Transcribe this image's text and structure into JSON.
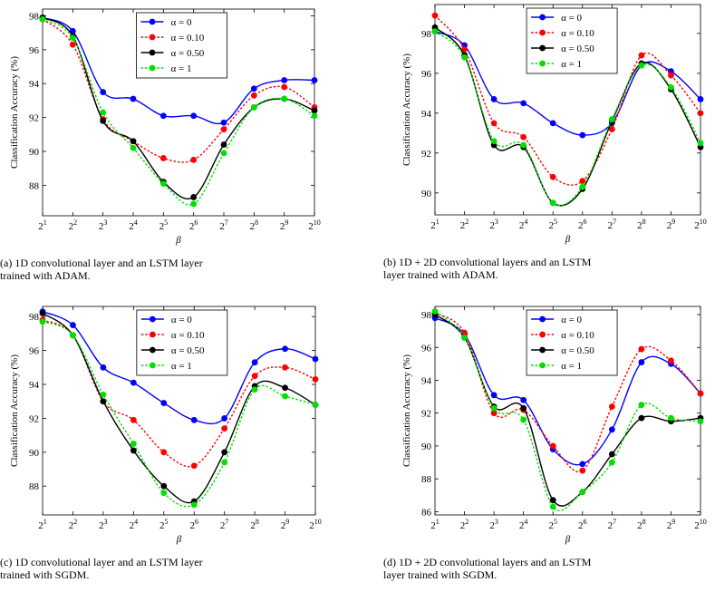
{
  "chart_data": [
    {
      "type": "line",
      "caption": [
        "(a) 1D convolutional layer and an LSTM layer",
        "trained with ADAM."
      ],
      "xlabel": "β",
      "ylabel": "Classification Accuracy (%)",
      "xscale": "log",
      "x": [
        2,
        4,
        8,
        16,
        32,
        64,
        128,
        256,
        512,
        1024
      ],
      "xlim": [
        2,
        1024
      ],
      "xticks": [
        {
          "value": 2,
          "label": "2^1"
        },
        {
          "value": 4,
          "label": "2^2"
        },
        {
          "value": 8,
          "label": "2^3"
        },
        {
          "value": 16,
          "label": "2^4"
        },
        {
          "value": 32,
          "label": "2^5"
        },
        {
          "value": 64,
          "label": "2^6"
        },
        {
          "value": 128,
          "label": "2^7"
        },
        {
          "value": 256,
          "label": "2^8"
        },
        {
          "value": 512,
          "label": "2^9"
        },
        {
          "value": 1024,
          "label": "2^10"
        }
      ],
      "ylim": [
        86.2,
        98.4
      ],
      "yticks": [
        88,
        90,
        92,
        94,
        96,
        98
      ],
      "series": [
        {
          "name": "α = 0",
          "color": "#0000ff",
          "style": "solid",
          "values": [
            97.9,
            97.1,
            93.5,
            93.1,
            92.1,
            92.1,
            91.7,
            93.7,
            94.2,
            94.2
          ]
        },
        {
          "name": "α = 0.10",
          "color": "#ff0000",
          "style": "dotted",
          "values": [
            97.8,
            96.3,
            91.9,
            90.6,
            89.6,
            89.5,
            91.3,
            93.3,
            93.8,
            92.6
          ]
        },
        {
          "name": "α = 0.50",
          "color": "#000000",
          "style": "solid",
          "values": [
            97.9,
            96.8,
            91.8,
            90.6,
            88.2,
            87.3,
            90.4,
            92.6,
            93.1,
            92.4
          ]
        },
        {
          "name": "α = 1",
          "color": "#00e000",
          "style": "dotted",
          "values": [
            97.8,
            96.7,
            92.3,
            90.2,
            88.1,
            86.9,
            89.9,
            92.6,
            93.1,
            92.1
          ]
        }
      ]
    },
    {
      "type": "line",
      "caption": [
        "(b) 1D + 2D convolutional layers and an LSTM",
        "layer trained with ADAM."
      ],
      "xlabel": "β",
      "ylabel": "Classification Accuracy (%)",
      "xscale": "log",
      "x": [
        2,
        4,
        8,
        16,
        32,
        64,
        128,
        256,
        512,
        1024
      ],
      "xlim": [
        2,
        1024
      ],
      "xticks": [
        {
          "value": 2,
          "label": "2^1"
        },
        {
          "value": 4,
          "label": "2^2"
        },
        {
          "value": 8,
          "label": "2^3"
        },
        {
          "value": 16,
          "label": "2^4"
        },
        {
          "value": 32,
          "label": "2^5"
        },
        {
          "value": 64,
          "label": "2^6"
        },
        {
          "value": 128,
          "label": "2^7"
        },
        {
          "value": 256,
          "label": "2^8"
        },
        {
          "value": 512,
          "label": "2^9"
        },
        {
          "value": 1024,
          "label": "2^10"
        }
      ],
      "ylim": [
        88.9,
        99.45
      ],
      "yticks": [
        90,
        92,
        94,
        96,
        98
      ],
      "series": [
        {
          "name": "α = 0",
          "color": "#0000ff",
          "style": "solid",
          "values": [
            98.1,
            97.4,
            94.7,
            94.5,
            93.5,
            92.9,
            93.5,
            96.4,
            96.1,
            94.7
          ]
        },
        {
          "name": "α = 0.10",
          "color": "#ff0000",
          "style": "dotted",
          "values": [
            98.9,
            97.2,
            93.5,
            92.8,
            90.8,
            90.6,
            93.2,
            96.9,
            95.9,
            94.0
          ]
        },
        {
          "name": "α = 0.50",
          "color": "#000000",
          "style": "solid",
          "values": [
            98.3,
            96.9,
            92.4,
            92.3,
            89.5,
            90.2,
            93.6,
            96.5,
            95.2,
            92.3
          ]
        },
        {
          "name": "α = 1",
          "color": "#00e000",
          "style": "dotted",
          "values": [
            98.1,
            96.8,
            92.6,
            92.4,
            89.5,
            90.3,
            93.7,
            96.4,
            95.3,
            92.5
          ]
        }
      ]
    },
    {
      "type": "line",
      "caption": [
        "(c) 1D convolutional layer and an LSTM layer",
        "trained with SGDM."
      ],
      "xlabel": "β",
      "ylabel": "Classification Accuracy (%)",
      "xscale": "log",
      "x": [
        2,
        4,
        8,
        16,
        32,
        64,
        128,
        256,
        512,
        1024
      ],
      "xlim": [
        2,
        1024
      ],
      "xticks": [
        {
          "value": 2,
          "label": "2^1"
        },
        {
          "value": 4,
          "label": "2^2"
        },
        {
          "value": 8,
          "label": "2^3"
        },
        {
          "value": 16,
          "label": "2^4"
        },
        {
          "value": 32,
          "label": "2^5"
        },
        {
          "value": 64,
          "label": "2^6"
        },
        {
          "value": 128,
          "label": "2^7"
        },
        {
          "value": 256,
          "label": "2^8"
        },
        {
          "value": 512,
          "label": "2^9"
        },
        {
          "value": 1024,
          "label": "2^10"
        }
      ],
      "ylim": [
        86.3,
        98.6
      ],
      "yticks": [
        88,
        90,
        92,
        94,
        96,
        98
      ],
      "series": [
        {
          "name": "α = 0",
          "color": "#0000ff",
          "style": "solid",
          "values": [
            98.3,
            97.5,
            95.0,
            94.1,
            92.9,
            91.9,
            92.0,
            95.3,
            96.1,
            95.5
          ]
        },
        {
          "name": "α = 0.10",
          "color": "#ff0000",
          "style": "dotted",
          "values": [
            97.8,
            96.9,
            93.0,
            91.9,
            90.0,
            89.2,
            91.4,
            94.5,
            95.0,
            94.3
          ]
        },
        {
          "name": "α = 0.50",
          "color": "#000000",
          "style": "solid",
          "values": [
            98.2,
            96.9,
            93.0,
            90.1,
            88.0,
            87.1,
            90.0,
            93.9,
            93.8,
            92.8
          ]
        },
        {
          "name": "α = 1",
          "color": "#00e000",
          "style": "dotted",
          "values": [
            97.7,
            96.9,
            93.4,
            90.5,
            87.6,
            86.9,
            89.4,
            93.7,
            93.3,
            92.8
          ]
        }
      ]
    },
    {
      "type": "line",
      "caption": [
        "(d) 1D + 2D convolutional layers and an LSTM",
        "layer trained with SGDM."
      ],
      "xlabel": "β",
      "ylabel": "Classification Accuracy (%)",
      "xscale": "log",
      "x": [
        2,
        4,
        8,
        16,
        32,
        64,
        128,
        256,
        512,
        1024
      ],
      "xlim": [
        2,
        1024
      ],
      "xticks": [
        {
          "value": 2,
          "label": "2^1"
        },
        {
          "value": 4,
          "label": "2^2"
        },
        {
          "value": 8,
          "label": "2^3"
        },
        {
          "value": 16,
          "label": "2^4"
        },
        {
          "value": 32,
          "label": "2^5"
        },
        {
          "value": 64,
          "label": "2^6"
        },
        {
          "value": 128,
          "label": "2^7"
        },
        {
          "value": 256,
          "label": "2^8"
        },
        {
          "value": 512,
          "label": "2^9"
        },
        {
          "value": 1024,
          "label": "2^10"
        }
      ],
      "ylim": [
        85.8,
        98.5
      ],
      "yticks": [
        86,
        88,
        90,
        92,
        94,
        96,
        98
      ],
      "series": [
        {
          "name": "α = 0",
          "color": "#0000ff",
          "style": "solid",
          "values": [
            97.8,
            96.8,
            93.1,
            92.8,
            89.8,
            88.9,
            91.0,
            95.1,
            95.0,
            93.2
          ]
        },
        {
          "name": "α = 0.10",
          "color": "#ff0000",
          "style": "dotted",
          "values": [
            98.1,
            96.9,
            92.0,
            92.2,
            90.0,
            88.5,
            92.4,
            95.9,
            95.2,
            93.2
          ]
        },
        {
          "name": "α = 0.50",
          "color": "#000000",
          "style": "solid",
          "values": [
            98.0,
            96.6,
            92.4,
            92.3,
            86.7,
            87.2,
            89.5,
            91.7,
            91.5,
            91.7
          ]
        },
        {
          "name": "α = 1",
          "color": "#00e000",
          "style": "dotted",
          "values": [
            98.2,
            96.6,
            92.3,
            91.6,
            86.3,
            87.2,
            89.0,
            92.5,
            91.7,
            91.5
          ]
        }
      ]
    }
  ]
}
